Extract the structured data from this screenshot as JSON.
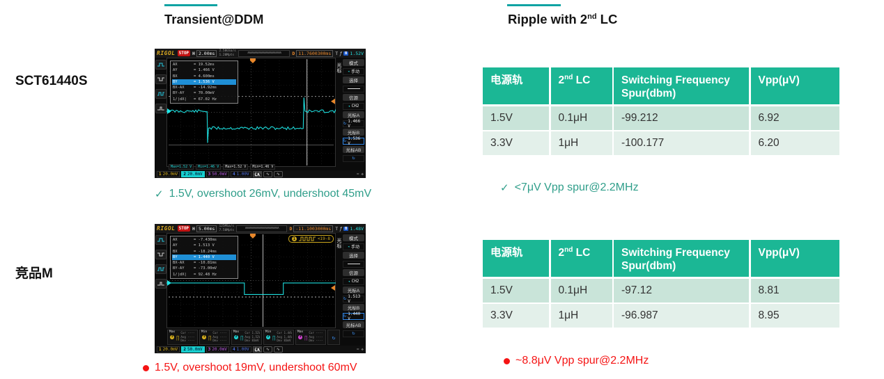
{
  "colors": {
    "accent": "#10a3a3",
    "table_header_bg": "#1bb795",
    "row_tint_dark": "#c9e4d9",
    "row_tint_light": "#e3f0ea",
    "good_text": "#2f9e8a",
    "bad_text": "#f51414",
    "trace": "#1fe8e8",
    "trigger_marker": "#e8872a"
  },
  "headings": {
    "left": "Transient@DDM",
    "right_base": "Ripple with 2",
    "right_sup": "nd",
    "right_rest": " LC"
  },
  "row_labels": {
    "row1": "SCT61440S",
    "row2": "竞品M"
  },
  "notes": {
    "scope1": {
      "mark": "✓",
      "text": "1.5V, overshoot 26mV, undershoot 45mV"
    },
    "table1": {
      "mark": "✓",
      "text": "<7μV Vpp spur@2.2MHz"
    },
    "scope2": {
      "text": "1.5V, overshoot 19mV, undershoot 60mV"
    },
    "table2": {
      "text": "~8.8μV Vpp spur@2.2MHz"
    }
  },
  "tables": {
    "headers": {
      "h1": "电源轨",
      "h2_base": "2",
      "h2_sup": "nd",
      "h2_rest": " LC",
      "h3": "Switching Frequency Spur(dbm)",
      "h4": "Vpp(μV)"
    },
    "table1": {
      "rows": [
        [
          "1.5V",
          "0.1μH",
          "-99.212",
          "6.92"
        ],
        [
          "3.3V",
          "1μH",
          "-100.177",
          "6.20"
        ]
      ]
    },
    "table2": {
      "rows": [
        [
          "1.5V",
          "0.1μH",
          "-97.12",
          "8.81"
        ],
        [
          "3.3V",
          "1μH",
          "-96.987",
          "8.95"
        ]
      ]
    }
  },
  "scope1": {
    "brand": "RIGOL",
    "stop": "STOP",
    "h_label": "H",
    "h_value": "2.00ms",
    "rate1": "2.50GSa/s",
    "rate2": "1.20Mpts",
    "preview": "∧∧∧∧∧∧∧∧∧∧∧∧∧∧∧∧∧∧∧∧∧∧∧∧",
    "d_label": "D",
    "d_value": "11.7600300ms",
    "t_label": "T",
    "t_slope": "ƒ",
    "t_src": "B",
    "t_value": "1.52V",
    "cursor_box": {
      "rows": [
        {
          "k": "AX",
          "v": "= 19.52ms",
          "hl": false
        },
        {
          "k": "AY",
          "v": "= 1.466 V",
          "hl": false
        },
        {
          "k": "BX",
          "v": "= 4.600ms",
          "hl": false
        },
        {
          "k": "BY",
          "v": "= 1.536 V",
          "hl": true
        },
        {
          "k": "BX-AX",
          "v": "= -14.92ms",
          "hl": false
        },
        {
          "k": "BY-AY",
          "v": "= 70.00mV",
          "hl": false
        },
        {
          "k": "1/|dX|",
          "v": "= 67.02 Hz",
          "hl": false
        }
      ]
    },
    "menu": {
      "side": "光标",
      "mode_label": "模式",
      "mode_value": "手动",
      "select_label": "选择",
      "source_label": "信源",
      "source_value": "CH2",
      "ca_label": "光标A",
      "ca_value": "1.466 V",
      "cb_label": "光标B",
      "cb_value": "1.536 V",
      "cab_label": "光标AB"
    },
    "tags": [
      {
        "text": "Max=1.52 V",
        "color": "#20d4d4"
      },
      {
        "text": "Min=1.46 V",
        "color": "#20d4d4"
      },
      {
        "text": "Max=1.52 V",
        "color": "#dddddd"
      },
      {
        "text": "Min=1.46 V",
        "color": "#dddddd"
      }
    ],
    "bottom": {
      "ch1_num": "1",
      "ch1": "20.0mV",
      "ch2_num": "2",
      "ch2": "20.0mV",
      "ch3_num": "3",
      "ch3": "50.0mV",
      "ch4_num": "4",
      "ch4": "1.00V",
      "la": "LA",
      "wave1": "∿",
      "wave2": "∿",
      "ric1": "≈",
      "ric2": "❖"
    },
    "trace": {
      "segments": [
        {
          "pts": [
            [
              0,
              0.49
            ],
            [
              0.24,
              0.49
            ]
          ],
          "noisy": true
        },
        {
          "pts": [
            [
              0.24,
              0.49
            ],
            [
              0.243,
              0.78
            ],
            [
              0.248,
              0.645
            ]
          ],
          "noisy": false
        },
        {
          "pts": [
            [
              0.248,
              0.645
            ],
            [
              0.808,
              0.645
            ]
          ],
          "noisy": true
        },
        {
          "pts": [
            [
              0.808,
              0.645
            ],
            [
              0.812,
              0.365
            ],
            [
              0.818,
              0.49
            ]
          ],
          "noisy": false
        },
        {
          "pts": [
            [
              0.818,
              0.49
            ],
            [
              1,
              0.49
            ]
          ],
          "noisy": true
        }
      ],
      "hlines": [
        {
          "y": 0.355,
          "dash": "2,3",
          "color": "#cccccc"
        },
        {
          "y": 0.8,
          "dash": "",
          "color": "#6a6a6a"
        }
      ],
      "vlines": [
        {
          "x": 0.83,
          "color": "#dddddd"
        }
      ],
      "trig_x": 0.51,
      "trig_y": 0.4,
      "start_y": 0.49
    }
  },
  "scope2": {
    "brand": "RIGOL",
    "stop": "STOP",
    "h_label": "H",
    "h_value": "5.00ms",
    "rate1": "125MSa/s",
    "rate2": "7.50Mpts",
    "preview": "∧∧∧∧∧∧∧∧∧∧∧∧∧∧∧∧∧∧∧∧∧∧∧∧",
    "d_label": "D",
    "d_value": "-11.1003000ms",
    "t_label": "T",
    "t_slope": "ƒ",
    "t_src": "B",
    "t_value": "1.48V",
    "decode": {
      "ch": "1",
      "text": "<19-8"
    },
    "cursor_box": {
      "rows": [
        {
          "k": "AX",
          "v": "= -7.430ms",
          "hl": false
        },
        {
          "k": "AY",
          "v": "= 1.513 V",
          "hl": false
        },
        {
          "k": "BX",
          "v": "= -18.24ms",
          "hl": false
        },
        {
          "k": "BY",
          "v": "= 1.440 V",
          "hl": true
        },
        {
          "k": "BX-AX",
          "v": "= -10.81ms",
          "hl": false
        },
        {
          "k": "BY-AY",
          "v": "= -73.00mV",
          "hl": false
        },
        {
          "k": "1/|dX|",
          "v": "= 92.48 Hz",
          "hl": false
        }
      ]
    },
    "menu": {
      "side": "光标",
      "mode_label": "模式",
      "mode_value": "手动",
      "select_label": "选择",
      "source_label": "信源",
      "source_value": "CH2",
      "ca_label": "光标A",
      "ca_value": "1.513 V",
      "cb_label": "光标B",
      "cb_value": "1.440 V",
      "cab_label": "光标AB"
    },
    "tiles": [
      {
        "label": "Max",
        "ch": "1",
        "color": "#d9b21e",
        "lines": [
          "Cur ----",
          "Avg ----",
          "Dev ----"
        ]
      },
      {
        "label": "Min",
        "ch": "1",
        "color": "#d9b21e",
        "lines": [
          "Cur ----",
          "Avg ----",
          "Dev ----"
        ]
      },
      {
        "label": "Max",
        "ch": "2",
        "color": "#20d4d4",
        "lines": [
          "Cur 1.52V",
          "Avg 1.52V",
          "Dev 83mV"
        ]
      },
      {
        "label": "Min",
        "ch": "2",
        "color": "#20d4d4",
        "lines": [
          "Cur 1.44V",
          "Avg 1.44V",
          "Dev 83mV"
        ]
      },
      {
        "label": "Max",
        "ch": "3",
        "color": "#d044d0",
        "lines": [
          "Cur ----",
          "Avg ----",
          "Dev ----"
        ]
      }
    ],
    "bottom": {
      "ch1_num": "1",
      "ch1": "20.0mV",
      "ch2_num": "2",
      "ch2": "50.0mV",
      "ch3_num": "3",
      "ch3": "20.0mV",
      "ch4_num": "4",
      "ch4": "1.00V",
      "la": "LA",
      "wave1": "∿",
      "wave2": "∿",
      "ric1": "≈",
      "ric2": "❖"
    },
    "trace": {
      "segments": [
        {
          "pts": [
            [
              0,
              0.525
            ],
            [
              0.46,
              0.525
            ],
            [
              0.46,
              0.645
            ],
            [
              0.69,
              0.645
            ],
            [
              0.69,
              0.525
            ],
            [
              1,
              0.525
            ]
          ],
          "noisy": false
        }
      ],
      "hlines": [
        {
          "y": 0.672,
          "dash": "2,3",
          "color": "#cccccc"
        }
      ],
      "vlines": [
        {
          "x": 0.57,
          "color": "#cccccc"
        }
      ],
      "trig_x": 0.51,
      "trig_y": 0.577,
      "start_y": 0.525
    }
  }
}
